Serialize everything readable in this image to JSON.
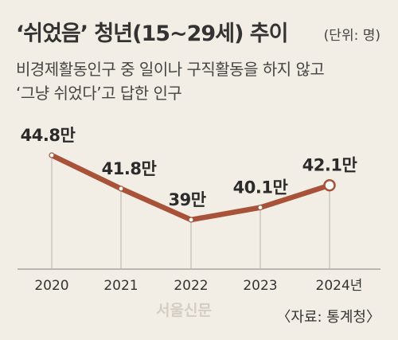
{
  "header": {
    "title": "‘쉬었음’ 청년(15~29세) 추이",
    "unit": "(단위: 명)",
    "subtitle_line1": "비경제활동인구 중 일이나 구직활동을 하지 않고",
    "subtitle_line2": "‘그냥 쉬었다’고 답한 인구"
  },
  "chart_data": {
    "type": "line",
    "title": "‘쉬었음’ 청년(15~29세) 추이",
    "x": [
      "2020",
      "2021",
      "2022",
      "2023",
      "2024년"
    ],
    "values": [
      44.8,
      41.8,
      39,
      40.1,
      42.1
    ],
    "value_labels": [
      "44.8만",
      "41.8만",
      "39만",
      "40.1만",
      "42.1만"
    ],
    "unit": "만",
    "grid": false,
    "colors": {
      "line": "#a9523a",
      "marker_fill": "#ffffff",
      "highlight_fill": "#ffffff"
    }
  },
  "footer": {
    "watermark": "서울신문",
    "source": "〈자료: 통계청〉"
  }
}
